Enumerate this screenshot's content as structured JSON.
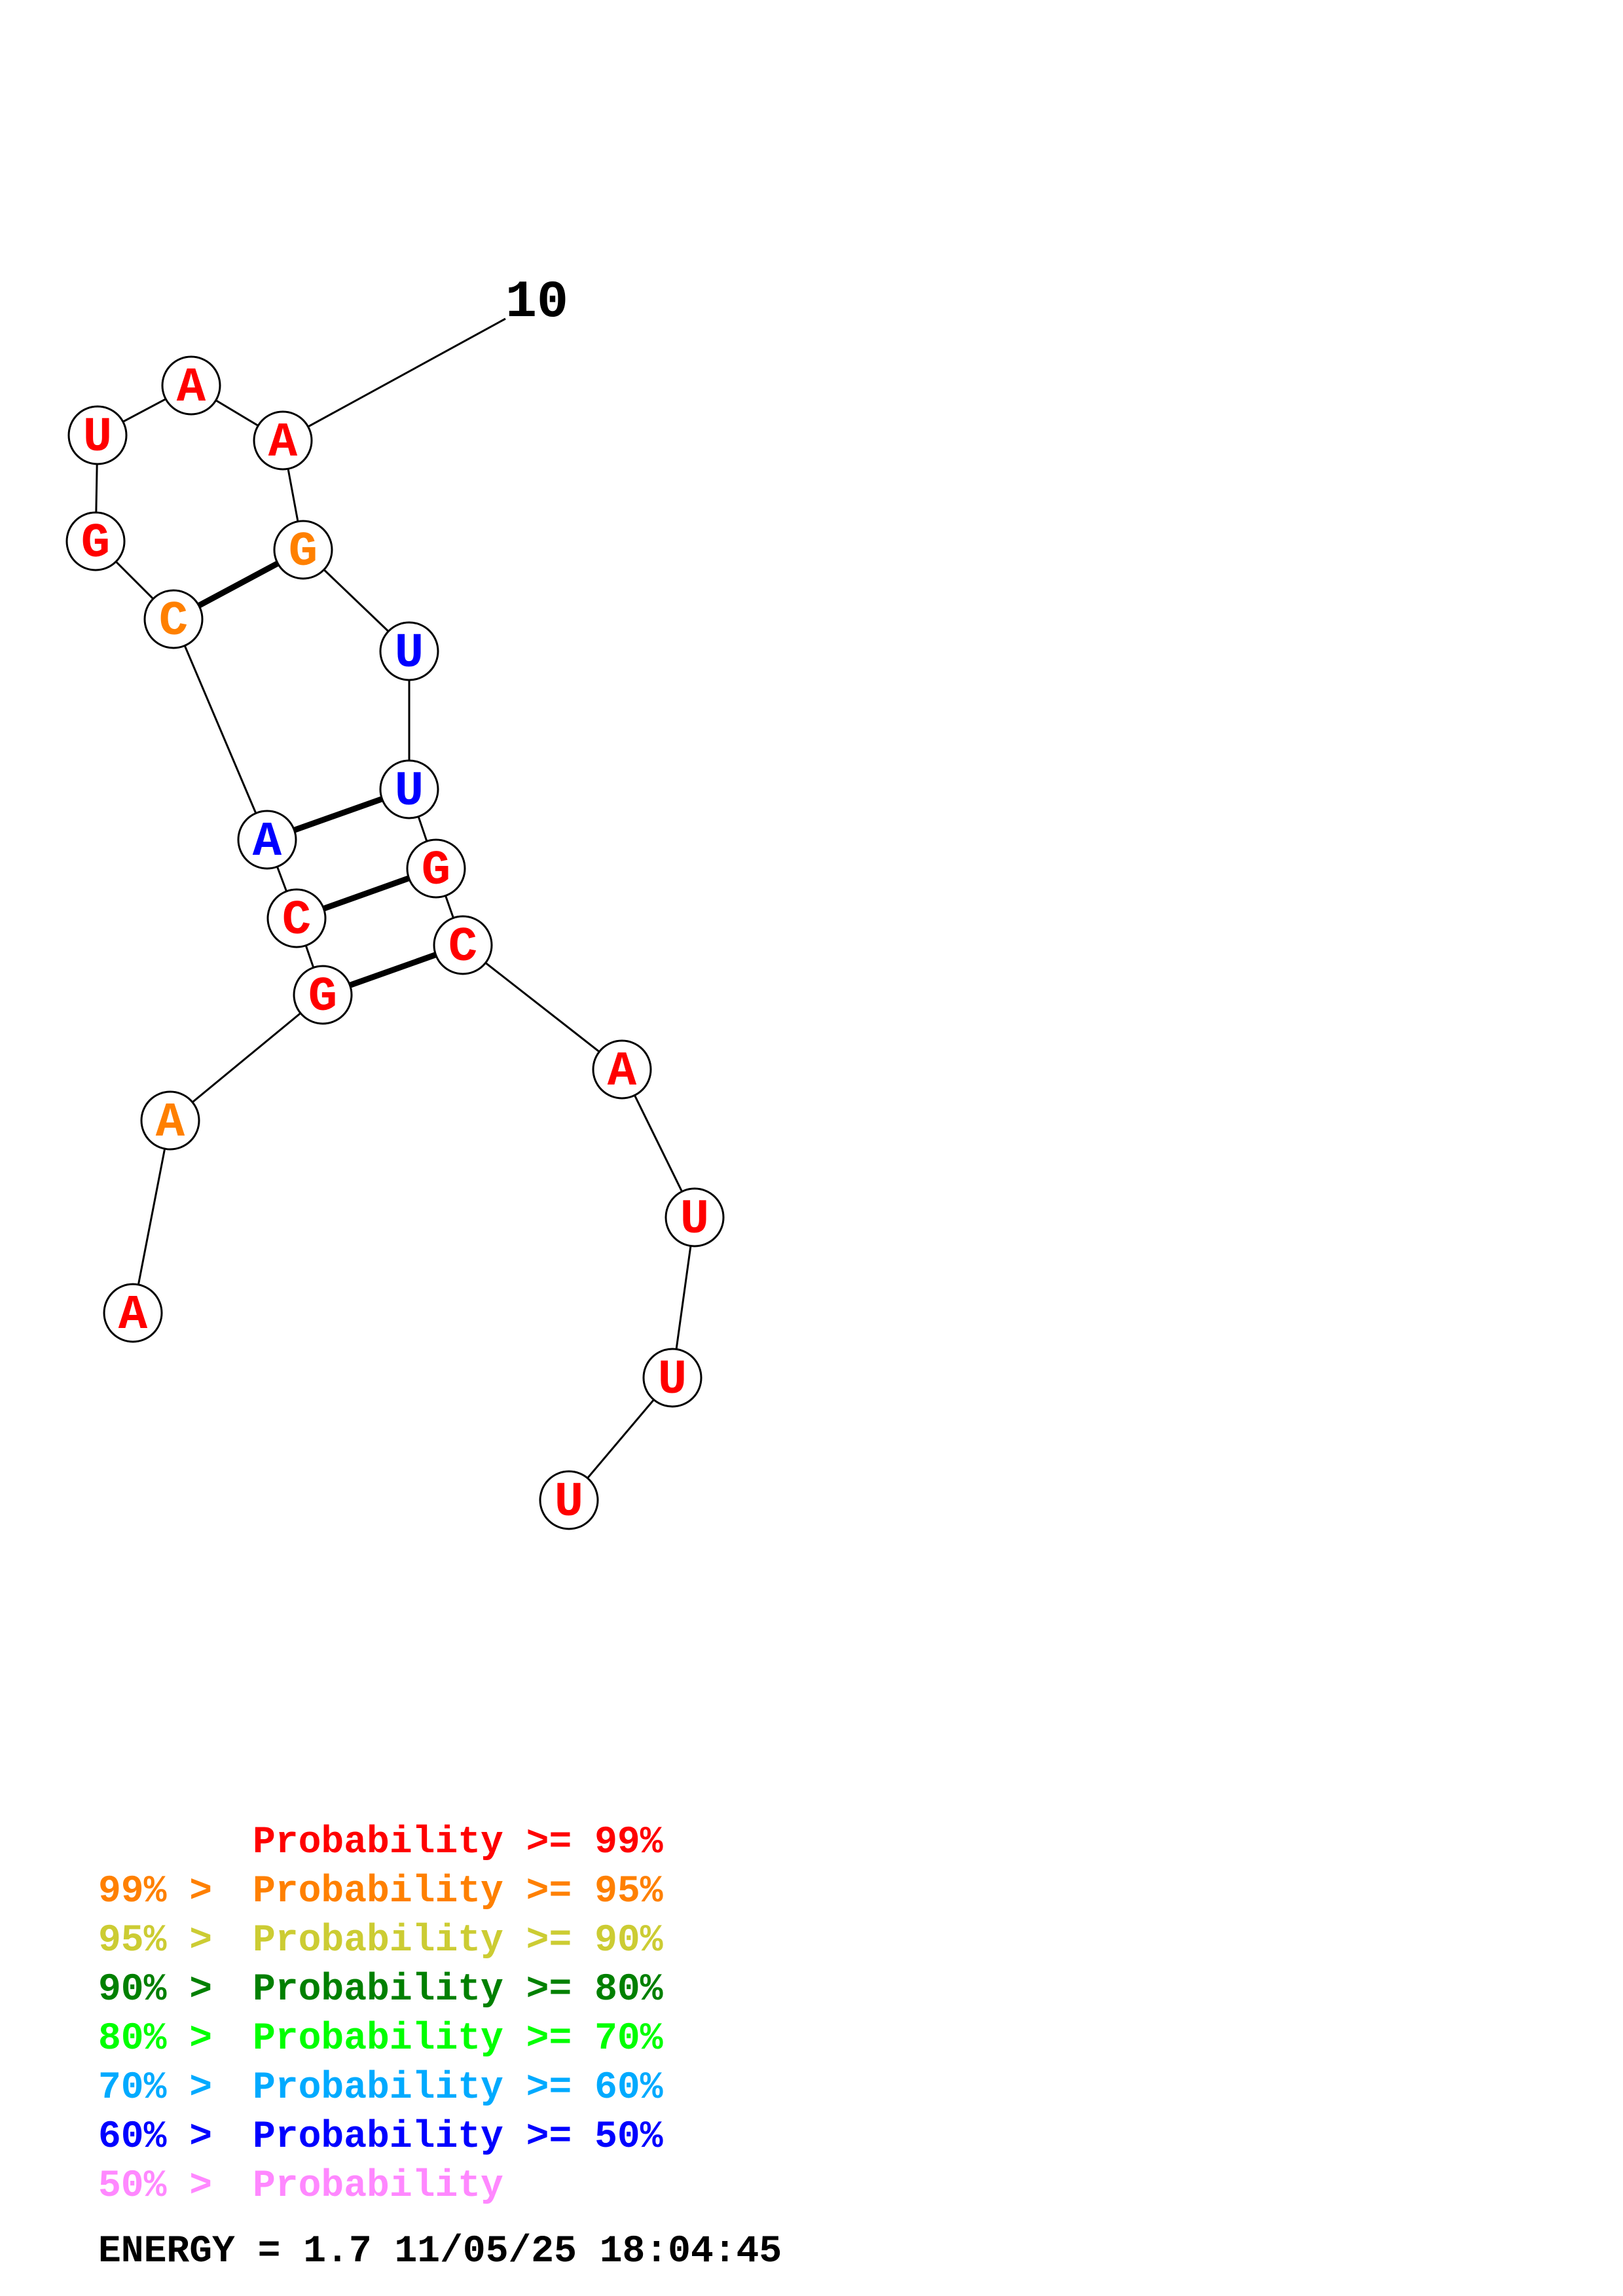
{
  "diagram": {
    "nucleotides": [
      {
        "letter": "A",
        "color": "#ff0000"
      },
      {
        "letter": "A",
        "color": "#ff8000"
      },
      {
        "letter": "G",
        "color": "#ff0000"
      },
      {
        "letter": "C",
        "color": "#ff0000"
      },
      {
        "letter": "A",
        "color": "#0000ff"
      },
      {
        "letter": "C",
        "color": "#ff8000"
      },
      {
        "letter": "G",
        "color": "#ff0000"
      },
      {
        "letter": "U",
        "color": "#ff0000"
      },
      {
        "letter": "A",
        "color": "#ff0000"
      },
      {
        "letter": "A",
        "color": "#ff0000"
      },
      {
        "letter": "G",
        "color": "#ff8000"
      },
      {
        "letter": "U",
        "color": "#0000ff"
      },
      {
        "letter": "U",
        "color": "#0000ff"
      },
      {
        "letter": "G",
        "color": "#ff0000"
      },
      {
        "letter": "C",
        "color": "#ff0000"
      },
      {
        "letter": "A",
        "color": "#ff0000"
      },
      {
        "letter": "U",
        "color": "#ff0000"
      },
      {
        "letter": "U",
        "color": "#ff0000"
      },
      {
        "letter": "U",
        "color": "#ff0000"
      }
    ],
    "pairs": [
      [
        3,
        15
      ],
      [
        4,
        14
      ],
      [
        5,
        13
      ],
      [
        6,
        11
      ]
    ],
    "position_label": "10"
  },
  "legend": [
    {
      "range": "",
      "label": "Probability >= 99%",
      "color": "#ff0000"
    },
    {
      "range": "99% >",
      "label": "Probability >= 95%",
      "color": "#ff8000"
    },
    {
      "range": "95% >",
      "label": "Probability >= 90%",
      "color": "#cccc33"
    },
    {
      "range": "90% >",
      "label": "Probability >= 80%",
      "color": "#008000"
    },
    {
      "range": "80% >",
      "label": "Probability >= 70%",
      "color": "#00ff00"
    },
    {
      "range": "70% >",
      "label": "Probability >= 60%",
      "color": "#00aaff"
    },
    {
      "range": "60% >",
      "label": "Probability >= 50%",
      "color": "#0000ff"
    },
    {
      "range": "50% >",
      "label": "Probability",
      "color": "#ff88ff"
    }
  ],
  "energy": "ENERGY = 1.7  11/05/25 18:04:45"
}
